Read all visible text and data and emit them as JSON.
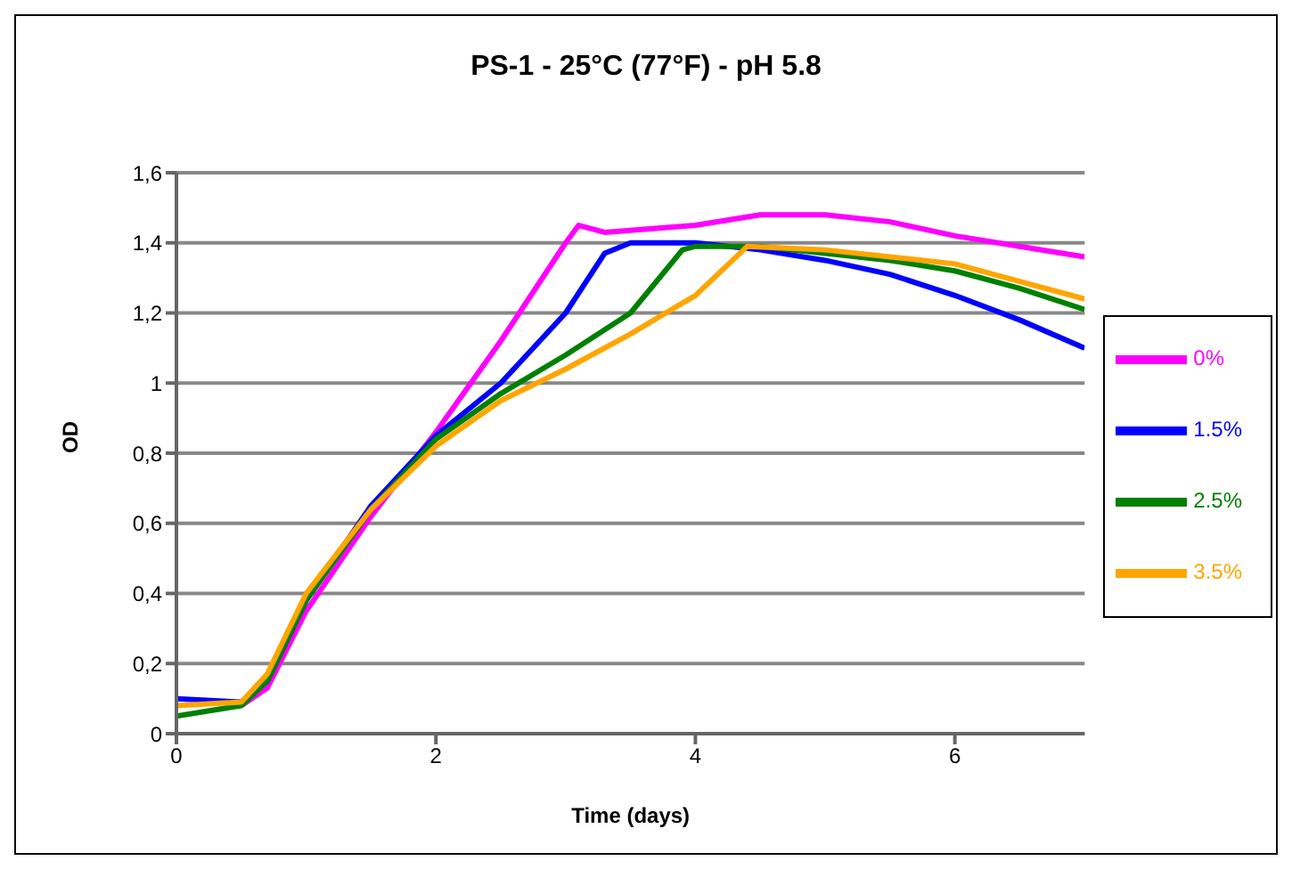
{
  "chart_data": {
    "type": "line",
    "title": "PS-1 - 25°C (77°F) - pH 5.8",
    "xlabel": "Time (days)",
    "ylabel": "OD",
    "xlim": [
      0,
      7
    ],
    "xticks": [
      0,
      2,
      4,
      6
    ],
    "ylim": [
      0,
      1.6
    ],
    "yticks": [
      0,
      {
        "value": 0.2,
        "label": "0,2"
      },
      {
        "value": 0.4,
        "label": "0,4"
      },
      {
        "value": 0.6,
        "label": "0,6"
      },
      {
        "value": 0.8,
        "label": "0,8"
      },
      1,
      {
        "value": 1.2,
        "label": "1,2"
      },
      {
        "value": 1.4,
        "label": "1,4"
      },
      {
        "value": 1.6,
        "label": "1,6"
      }
    ],
    "grid": "y",
    "legend": "right",
    "marker": "none",
    "line_style": "solid",
    "series": [
      {
        "name": "0%",
        "color": "#ff00ff",
        "x": [
          0.5,
          0.7,
          1,
          1.5,
          2,
          2.5,
          3,
          3.1,
          3.3,
          4,
          4.5,
          5,
          5.5,
          6,
          6.5,
          7
        ],
        "values": [
          0.08,
          0.13,
          0.35,
          0.62,
          0.86,
          1.12,
          1.4,
          1.45,
          1.43,
          1.45,
          1.48,
          1.48,
          1.46,
          1.42,
          1.39,
          1.36
        ]
      },
      {
        "name": "1.5%",
        "color": "#0000ff",
        "x": [
          0,
          0.5,
          0.7,
          1,
          1.5,
          2,
          2.5,
          3,
          3.3,
          3.5,
          4,
          4.5,
          5,
          5.5,
          6,
          6.5,
          7
        ],
        "values": [
          0.1,
          0.09,
          0.15,
          0.38,
          0.65,
          0.85,
          1.0,
          1.2,
          1.37,
          1.4,
          1.4,
          1.38,
          1.35,
          1.31,
          1.25,
          1.18,
          1.1
        ]
      },
      {
        "name": "2.5%",
        "color": "#008000",
        "x": [
          0,
          0.5,
          0.7,
          1,
          1.5,
          2,
          2.5,
          3,
          3.5,
          3.9,
          4,
          4.5,
          5,
          5.5,
          6,
          6.5,
          7
        ],
        "values": [
          0.05,
          0.08,
          0.15,
          0.38,
          0.64,
          0.84,
          0.97,
          1.08,
          1.2,
          1.38,
          1.39,
          1.39,
          1.37,
          1.35,
          1.32,
          1.27,
          1.21
        ]
      },
      {
        "name": "3.5%",
        "color": "#ffa500",
        "x": [
          0,
          0.5,
          0.7,
          1,
          1.5,
          2,
          2.5,
          3,
          3.5,
          4,
          4.4,
          5,
          5.5,
          6,
          6.5,
          7
        ],
        "values": [
          0.08,
          0.09,
          0.17,
          0.4,
          0.64,
          0.82,
          0.95,
          1.04,
          1.14,
          1.25,
          1.39,
          1.38,
          1.36,
          1.34,
          1.29,
          1.24
        ]
      }
    ]
  }
}
